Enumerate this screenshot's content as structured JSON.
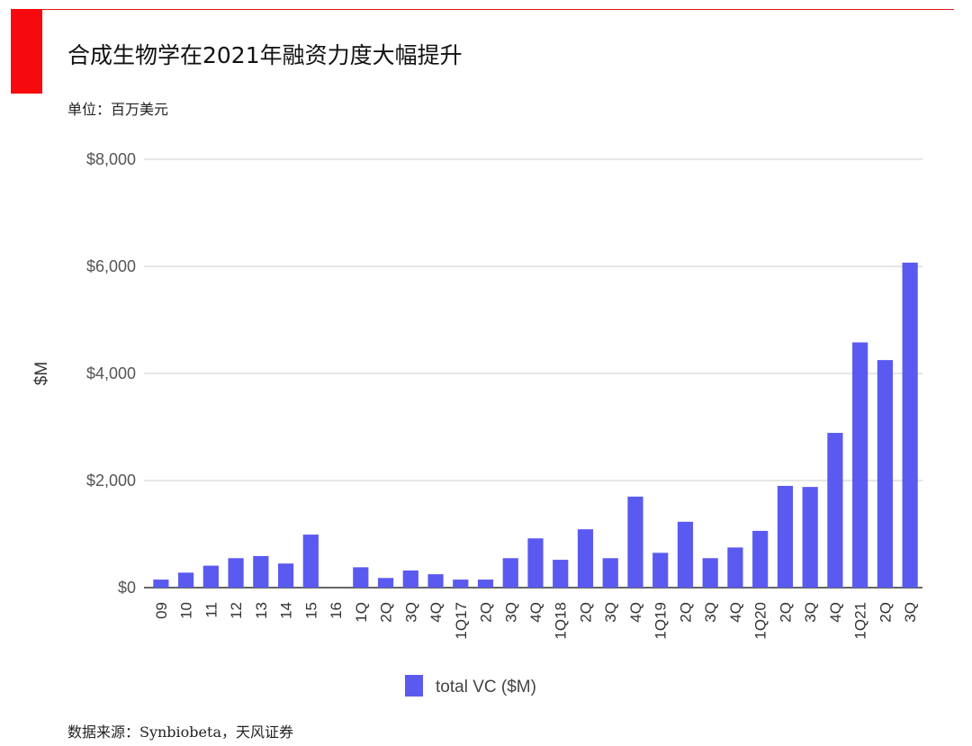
{
  "header": {
    "title": "合成生物学在2021年融资力度大幅提升",
    "unit": "单位：百万美元"
  },
  "footer": {
    "source": "数据来源：Synbiobeta，天风证券"
  },
  "colors": {
    "accent": "#f60a0d",
    "bar": "#5a5af0",
    "grid": "#cccccc"
  },
  "chart_data": {
    "type": "bar",
    "ylabel": "$M",
    "ylim": [
      0,
      8000
    ],
    "y_ticks": [
      {
        "value": 0,
        "label": "$0"
      },
      {
        "value": 2000,
        "label": "$2,000"
      },
      {
        "value": 4000,
        "label": "$4,000"
      },
      {
        "value": 6000,
        "label": "$6,000"
      },
      {
        "value": 8000,
        "label": "$8,000"
      }
    ],
    "grid": true,
    "legend_position": "bottom",
    "categories": [
      "09",
      "10",
      "11",
      "12",
      "13",
      "14",
      "15",
      "16",
      "1Q",
      "2Q",
      "3Q",
      "4Q",
      "1Q17",
      "2Q",
      "3Q",
      "4Q",
      "1Q18",
      "2Q",
      "3Q",
      "4Q",
      "1Q19",
      "2Q",
      "3Q",
      "4Q",
      "1Q20",
      "2Q",
      "3Q",
      "4Q",
      "1Q21",
      "2Q",
      "3Q"
    ],
    "series": [
      {
        "name": "total VC ($M)",
        "values": [
          150,
          280,
          410,
          550,
          590,
          450,
          990,
          0,
          380,
          180,
          320,
          250,
          150,
          150,
          550,
          920,
          520,
          1090,
          550,
          1700,
          650,
          1230,
          550,
          750,
          1060,
          1900,
          1880,
          2890,
          4580,
          4250,
          6070
        ]
      }
    ]
  }
}
